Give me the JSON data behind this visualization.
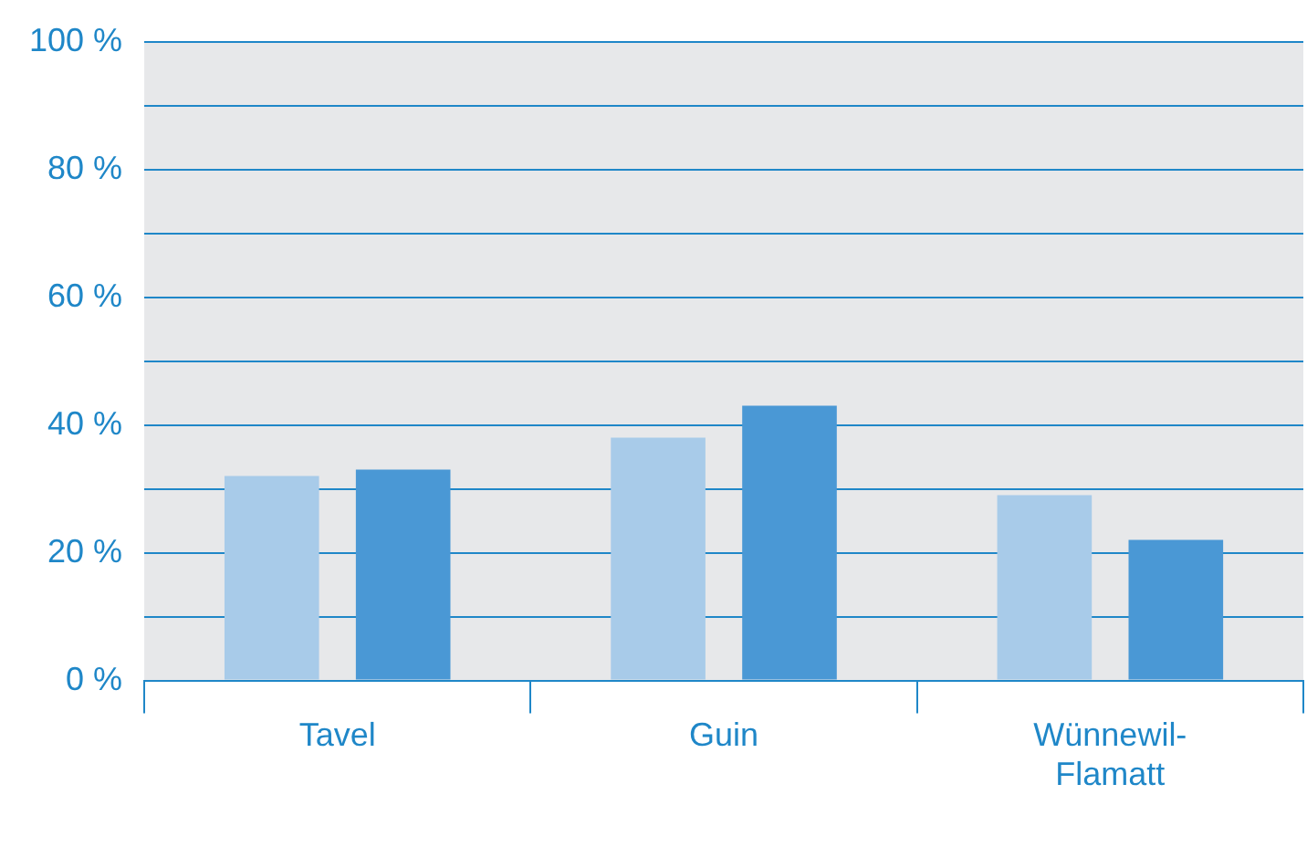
{
  "chart_data": {
    "type": "bar",
    "categories": [
      "Tavel",
      "Guin",
      "Wünnewil-Flamatt"
    ],
    "series": [
      {
        "color": "#a8cbe9",
        "values": [
          32,
          38,
          29
        ]
      },
      {
        "color": "#4a98d5",
        "values": [
          33,
          43,
          22
        ]
      }
    ],
    "ylim": [
      0,
      100
    ],
    "yticks": [
      {
        "value": 0,
        "label": "0 %"
      },
      {
        "value": 10,
        "label": null
      },
      {
        "value": 20,
        "label": "20 %"
      },
      {
        "value": 30,
        "label": null
      },
      {
        "value": 40,
        "label": "40 %"
      },
      {
        "value": 50,
        "label": null
      },
      {
        "value": 60,
        "label": "60 %"
      },
      {
        "value": 70,
        "label": null
      },
      {
        "value": 80,
        "label": "80 %"
      },
      {
        "value": 90,
        "label": null
      },
      {
        "value": 100,
        "label": "100 %"
      }
    ],
    "grid": "y",
    "legend": false
  }
}
